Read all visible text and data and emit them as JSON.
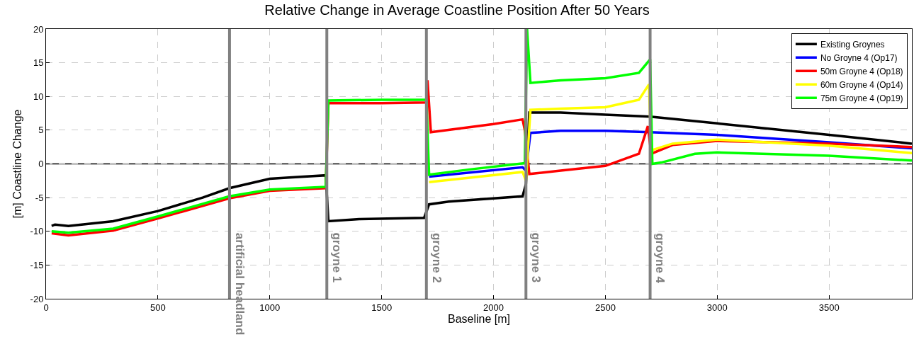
{
  "chart_data": {
    "type": "line",
    "title": "Relative Change in Average Coastline Position After 50 Years",
    "xlabel": "Baseline [m]",
    "ylabel": "[m] Coastline Change",
    "xlim": [
      0,
      3870
    ],
    "xticks": [
      0,
      500,
      1000,
      1500,
      2000,
      2500,
      3000,
      3500
    ],
    "ylim": [
      -20,
      20
    ],
    "yticks": [
      -20,
      -15,
      -10,
      -5,
      0,
      5,
      10,
      15,
      20
    ],
    "grid": true,
    "legend": "top right",
    "line_style": "solid",
    "marker": "none",
    "ref_lines": [
      {
        "axis": "y",
        "value": 0,
        "color": "#000000"
      },
      {
        "axis": "x",
        "value": 820,
        "label": "artificial headland",
        "color": "#808080"
      },
      {
        "axis": "x",
        "value": 1255,
        "label": "groyne 1",
        "color": "#808080"
      },
      {
        "axis": "x",
        "value": 1700,
        "label": "groyne 2",
        "color": "#808080"
      },
      {
        "axis": "x",
        "value": 2145,
        "label": "groyne 3",
        "color": "#808080"
      },
      {
        "axis": "x",
        "value": 2700,
        "label": "groyne 4",
        "color": "#808080"
      }
    ],
    "series": [
      {
        "name": "Existing Groynes",
        "color": "#000000",
        "x": [
          25,
          40,
          100,
          300,
          500,
          700,
          820,
          1000,
          1100,
          1250,
          1262,
          1400,
          1690,
          1712,
          1800,
          2130,
          2145,
          2160,
          2300,
          2500,
          2700,
          3000,
          3500,
          3870
        ],
        "values": [
          -9.2,
          -9.0,
          -9.2,
          -8.5,
          -7.0,
          -5.0,
          -3.6,
          -2.2,
          -2.0,
          -1.7,
          -8.5,
          -8.2,
          -8.0,
          -6.0,
          -5.6,
          -4.8,
          -3.0,
          7.6,
          7.6,
          7.3,
          7.0,
          6.0,
          4.3,
          3.0
        ]
      },
      {
        "name": "No Groyne 4 (Op17)",
        "color": "#0000ff",
        "x": [
          1712,
          2130,
          2145,
          2165,
          2300,
          2500,
          2700,
          3000,
          3500,
          3870
        ],
        "values": [
          -1.9,
          -0.5,
          -1.0,
          4.6,
          4.9,
          4.9,
          4.7,
          4.3,
          3.2,
          2.3
        ]
      },
      {
        "name": "50m Groyne 4 (Op18)",
        "color": "#ff0000",
        "x": [
          25,
          100,
          300,
          500,
          820,
          1000,
          1250,
          1262,
          1500,
          1700,
          1705,
          1720,
          2000,
          2130,
          2140,
          2160,
          2300,
          2500,
          2650,
          2690,
          2705,
          2800,
          3000,
          3500,
          3870
        ],
        "values": [
          -10.3,
          -10.6,
          -9.9,
          -8.1,
          -5.1,
          -4.0,
          -3.6,
          9.0,
          9.0,
          9.1,
          12.4,
          4.7,
          5.9,
          6.6,
          5.0,
          -1.5,
          -1.0,
          -0.3,
          1.5,
          5.6,
          1.5,
          2.8,
          3.4,
          3.0,
          2.5
        ]
      },
      {
        "name": "60m Groyne 4 (Op14)",
        "color": "#ffff00",
        "x": [
          1712,
          2130,
          2145,
          2165,
          2300,
          2500,
          2650,
          2695,
          2705,
          2800,
          3000,
          3500,
          3870
        ],
        "values": [
          -2.7,
          -1.2,
          -2.5,
          8.0,
          8.2,
          8.4,
          9.5,
          11.8,
          2.0,
          3.0,
          3.6,
          2.7,
          1.6
        ]
      },
      {
        "name": "75m Groyne 4 (Op19)",
        "color": "#00ff00",
        "x": [
          25,
          100,
          300,
          500,
          820,
          1000,
          1250,
          1262,
          1500,
          1700,
          1712,
          1900,
          2140,
          2150,
          2165,
          2300,
          2500,
          2650,
          2700,
          2710,
          2750,
          2900,
          3000,
          3500,
          3870
        ],
        "values": [
          -10.0,
          -10.2,
          -9.6,
          -7.8,
          -4.8,
          -3.8,
          -3.4,
          9.4,
          9.5,
          9.5,
          -1.6,
          -0.8,
          0.1,
          20,
          12.0,
          12.4,
          12.7,
          13.5,
          15.5,
          0,
          0.2,
          1.5,
          1.7,
          1.2,
          0.5
        ]
      }
    ]
  }
}
